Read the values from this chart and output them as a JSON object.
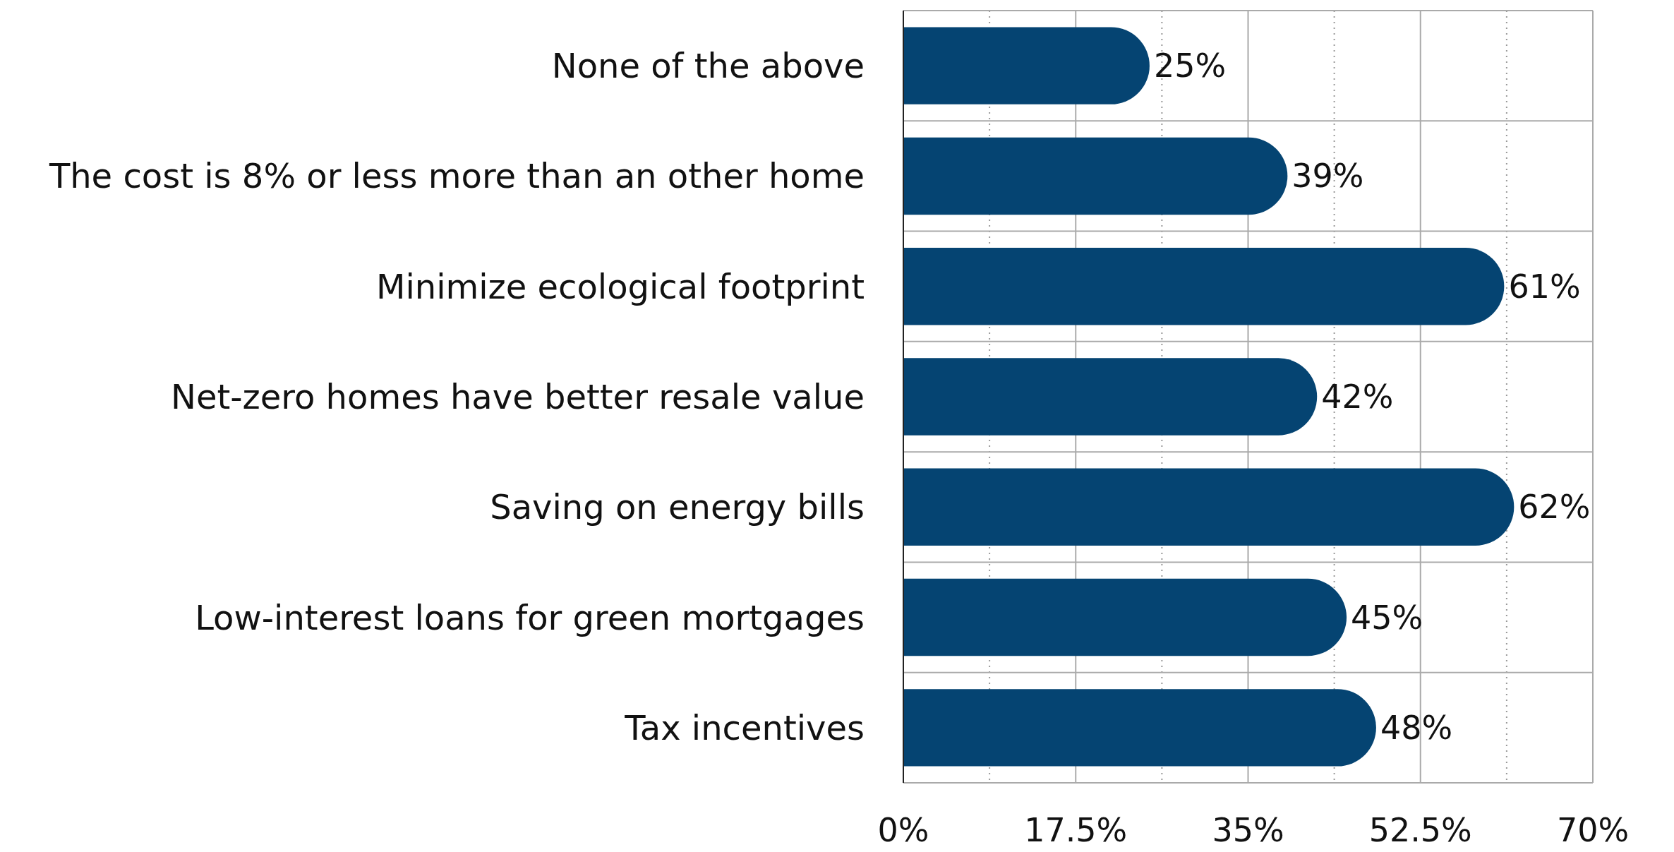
{
  "chart_data": {
    "type": "bar",
    "orientation": "horizontal",
    "categories": [
      "None of the above",
      "The cost is 8% or less more than an other home",
      "Minimize ecological footprint",
      "Net-zero homes have better resale value",
      "Saving on energy bills",
      "Low-interest loans for green mortgages",
      "Tax incentives"
    ],
    "values": [
      25,
      39,
      61,
      42,
      62,
      45,
      48
    ],
    "value_labels": [
      "25%",
      "39%",
      "61%",
      "42%",
      "62%",
      "45%",
      "48%"
    ],
    "color": "#054472",
    "xlim": [
      0,
      70
    ],
    "xticks": [
      {
        "value": 0,
        "label": "0%"
      },
      {
        "value": 8.75,
        "label": null
      },
      {
        "value": 17.5,
        "label": "17.5%"
      },
      {
        "value": 26.25,
        "label": null
      },
      {
        "value": 35,
        "label": "35%"
      },
      {
        "value": 43.75,
        "label": null
      },
      {
        "value": 52.5,
        "label": "52.5%"
      },
      {
        "value": 61.25,
        "label": null
      },
      {
        "value": 70,
        "label": "70%"
      }
    ],
    "grid": true
  }
}
